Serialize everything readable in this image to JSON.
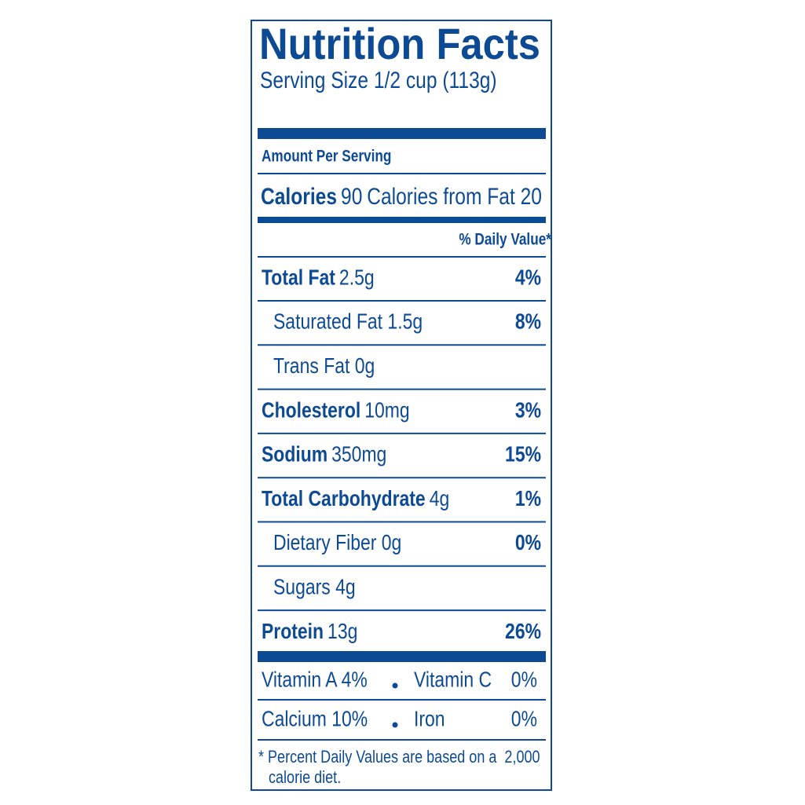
{
  "header": {
    "title": "Nutrition Facts",
    "serving_size": "Serving Size 1/2 cup (113g)"
  },
  "amount_per_serving": "Amount Per Serving",
  "calories": {
    "label": "Calories",
    "value": "90",
    "from_fat": "Calories from Fat 20"
  },
  "daily_value_header": "% Daily Value*",
  "nutrients": [
    {
      "name": "Total Fat",
      "amount": "2.5g",
      "dv": "4%"
    },
    {
      "name": "Saturated Fat 1.5g",
      "dv": "8%",
      "indent": true
    },
    {
      "name": "Trans Fat 0g",
      "indent": true
    },
    {
      "name": "Cholesterol",
      "amount": "10mg",
      "dv": "3%"
    },
    {
      "name": "Sodium",
      "amount": "350mg",
      "dv": "15%"
    },
    {
      "name": "Total Carbohydrate",
      "amount": "4g",
      "dv": "1%"
    },
    {
      "name": "Dietary Fiber 0g",
      "dv": "0%",
      "indent": true
    },
    {
      "name": "Sugars 4g",
      "indent": true
    },
    {
      "name": "Protein",
      "amount": "13g",
      "dv": "26%"
    }
  ],
  "vitamins": [
    {
      "left": "Vitamin A 4%",
      "right_name": "Vitamin C",
      "right_dv": "0%"
    },
    {
      "left": "Calcium 10%",
      "right_name": "Iron",
      "right_dv": "0%"
    }
  ],
  "footnote": [
    "* Percent Daily Values are based on a  2,000",
    "calorie diet."
  ]
}
